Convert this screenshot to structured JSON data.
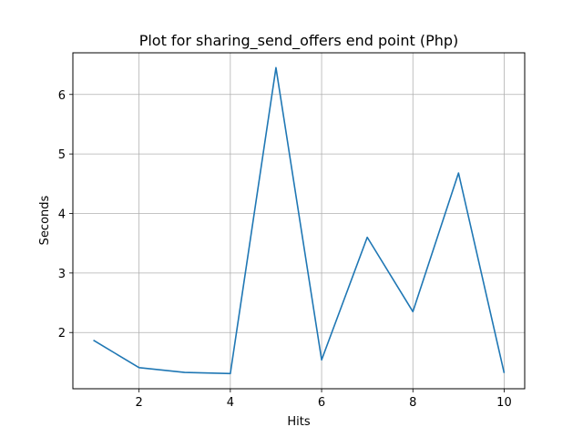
{
  "chart_data": {
    "type": "line",
    "title": "Plot for sharing_send_offers end point (Php)",
    "xlabel": "Hits",
    "ylabel": "Seconds",
    "xlim": [
      0.55,
      10.45
    ],
    "ylim": [
      1.055,
      6.7
    ],
    "xticks": [
      2,
      4,
      6,
      8,
      10
    ],
    "yticks": [
      2,
      3,
      4,
      5,
      6
    ],
    "grid": true,
    "colors": {
      "line": "#1f77b4",
      "grid": "#b0b0b0",
      "axes": "#000000"
    },
    "series": [
      {
        "x": [
          1,
          2,
          3,
          4,
          5,
          6,
          7,
          8,
          9,
          10
        ],
        "values": [
          1.87,
          1.41,
          1.33,
          1.31,
          6.45,
          1.54,
          3.6,
          2.35,
          4.68,
          1.32
        ]
      }
    ]
  }
}
